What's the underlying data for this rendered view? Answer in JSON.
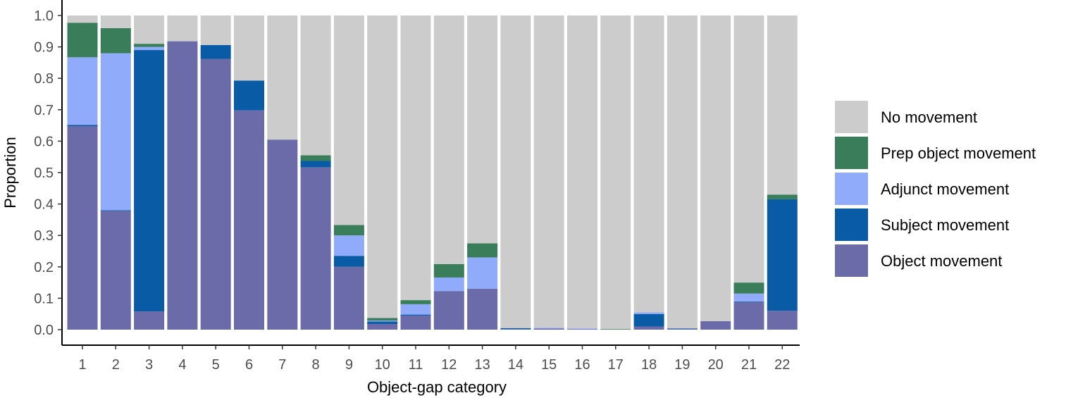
{
  "chart_data": {
    "type": "bar",
    "stacked": true,
    "title": "",
    "xlabel": "Object-gap category",
    "ylabel": "Proportion",
    "ylim": [
      0,
      1
    ],
    "yticks": [
      "0.0",
      "0.1",
      "0.2",
      "0.3",
      "0.4",
      "0.5",
      "0.6",
      "0.7",
      "0.8",
      "0.9",
      "1.0"
    ],
    "categories": [
      "1",
      "2",
      "3",
      "4",
      "5",
      "6",
      "7",
      "8",
      "9",
      "10",
      "11",
      "12",
      "13",
      "14",
      "15",
      "16",
      "17",
      "18",
      "19",
      "20",
      "21",
      "22"
    ],
    "legend_position": "right",
    "grid": false,
    "series": [
      {
        "name": "Object movement",
        "color": "#6b6baa",
        "values": [
          0.648,
          0.378,
          0.058,
          0.918,
          0.862,
          0.698,
          0.605,
          0.517,
          0.2,
          0.018,
          0.045,
          0.123,
          0.13,
          0.002,
          0.004,
          0.002,
          0.0,
          0.01,
          0.002,
          0.027,
          0.088,
          0.06
        ]
      },
      {
        "name": "Subject movement",
        "color": "#0a5ba6",
        "values": [
          0.004,
          0.002,
          0.832,
          0.0,
          0.044,
          0.095,
          0.0,
          0.02,
          0.035,
          0.008,
          0.003,
          0.0,
          0.0,
          0.003,
          0.0,
          0.0,
          0.0,
          0.04,
          0.002,
          0.0,
          0.002,
          0.355
        ]
      },
      {
        "name": "Adjunct movement",
        "color": "#8fabfa",
        "values": [
          0.215,
          0.5,
          0.01,
          0.0,
          0.0,
          0.0,
          0.0,
          0.0,
          0.065,
          0.003,
          0.033,
          0.043,
          0.1,
          0.0,
          0.002,
          0.002,
          0.0,
          0.005,
          0.0,
          0.0,
          0.025,
          0.0
        ]
      },
      {
        "name": "Prep object movement",
        "color": "#3a7d5a",
        "values": [
          0.11,
          0.08,
          0.01,
          0.0,
          0.0,
          0.0,
          0.0,
          0.018,
          0.033,
          0.008,
          0.013,
          0.043,
          0.045,
          0.0,
          0.0,
          0.0,
          0.002,
          0.0,
          0.0,
          0.0,
          0.035,
          0.015
        ]
      },
      {
        "name": "No movement",
        "color": "#cccccc",
        "values": [
          0.023,
          0.04,
          0.09,
          0.082,
          0.094,
          0.207,
          0.395,
          0.445,
          0.667,
          0.963,
          0.906,
          0.791,
          0.725,
          0.995,
          0.994,
          0.996,
          0.998,
          0.945,
          0.996,
          0.973,
          0.85,
          0.57
        ]
      }
    ],
    "legend_order": [
      "No movement",
      "Prep object movement",
      "Adjunct movement",
      "Subject movement",
      "Object movement"
    ]
  }
}
